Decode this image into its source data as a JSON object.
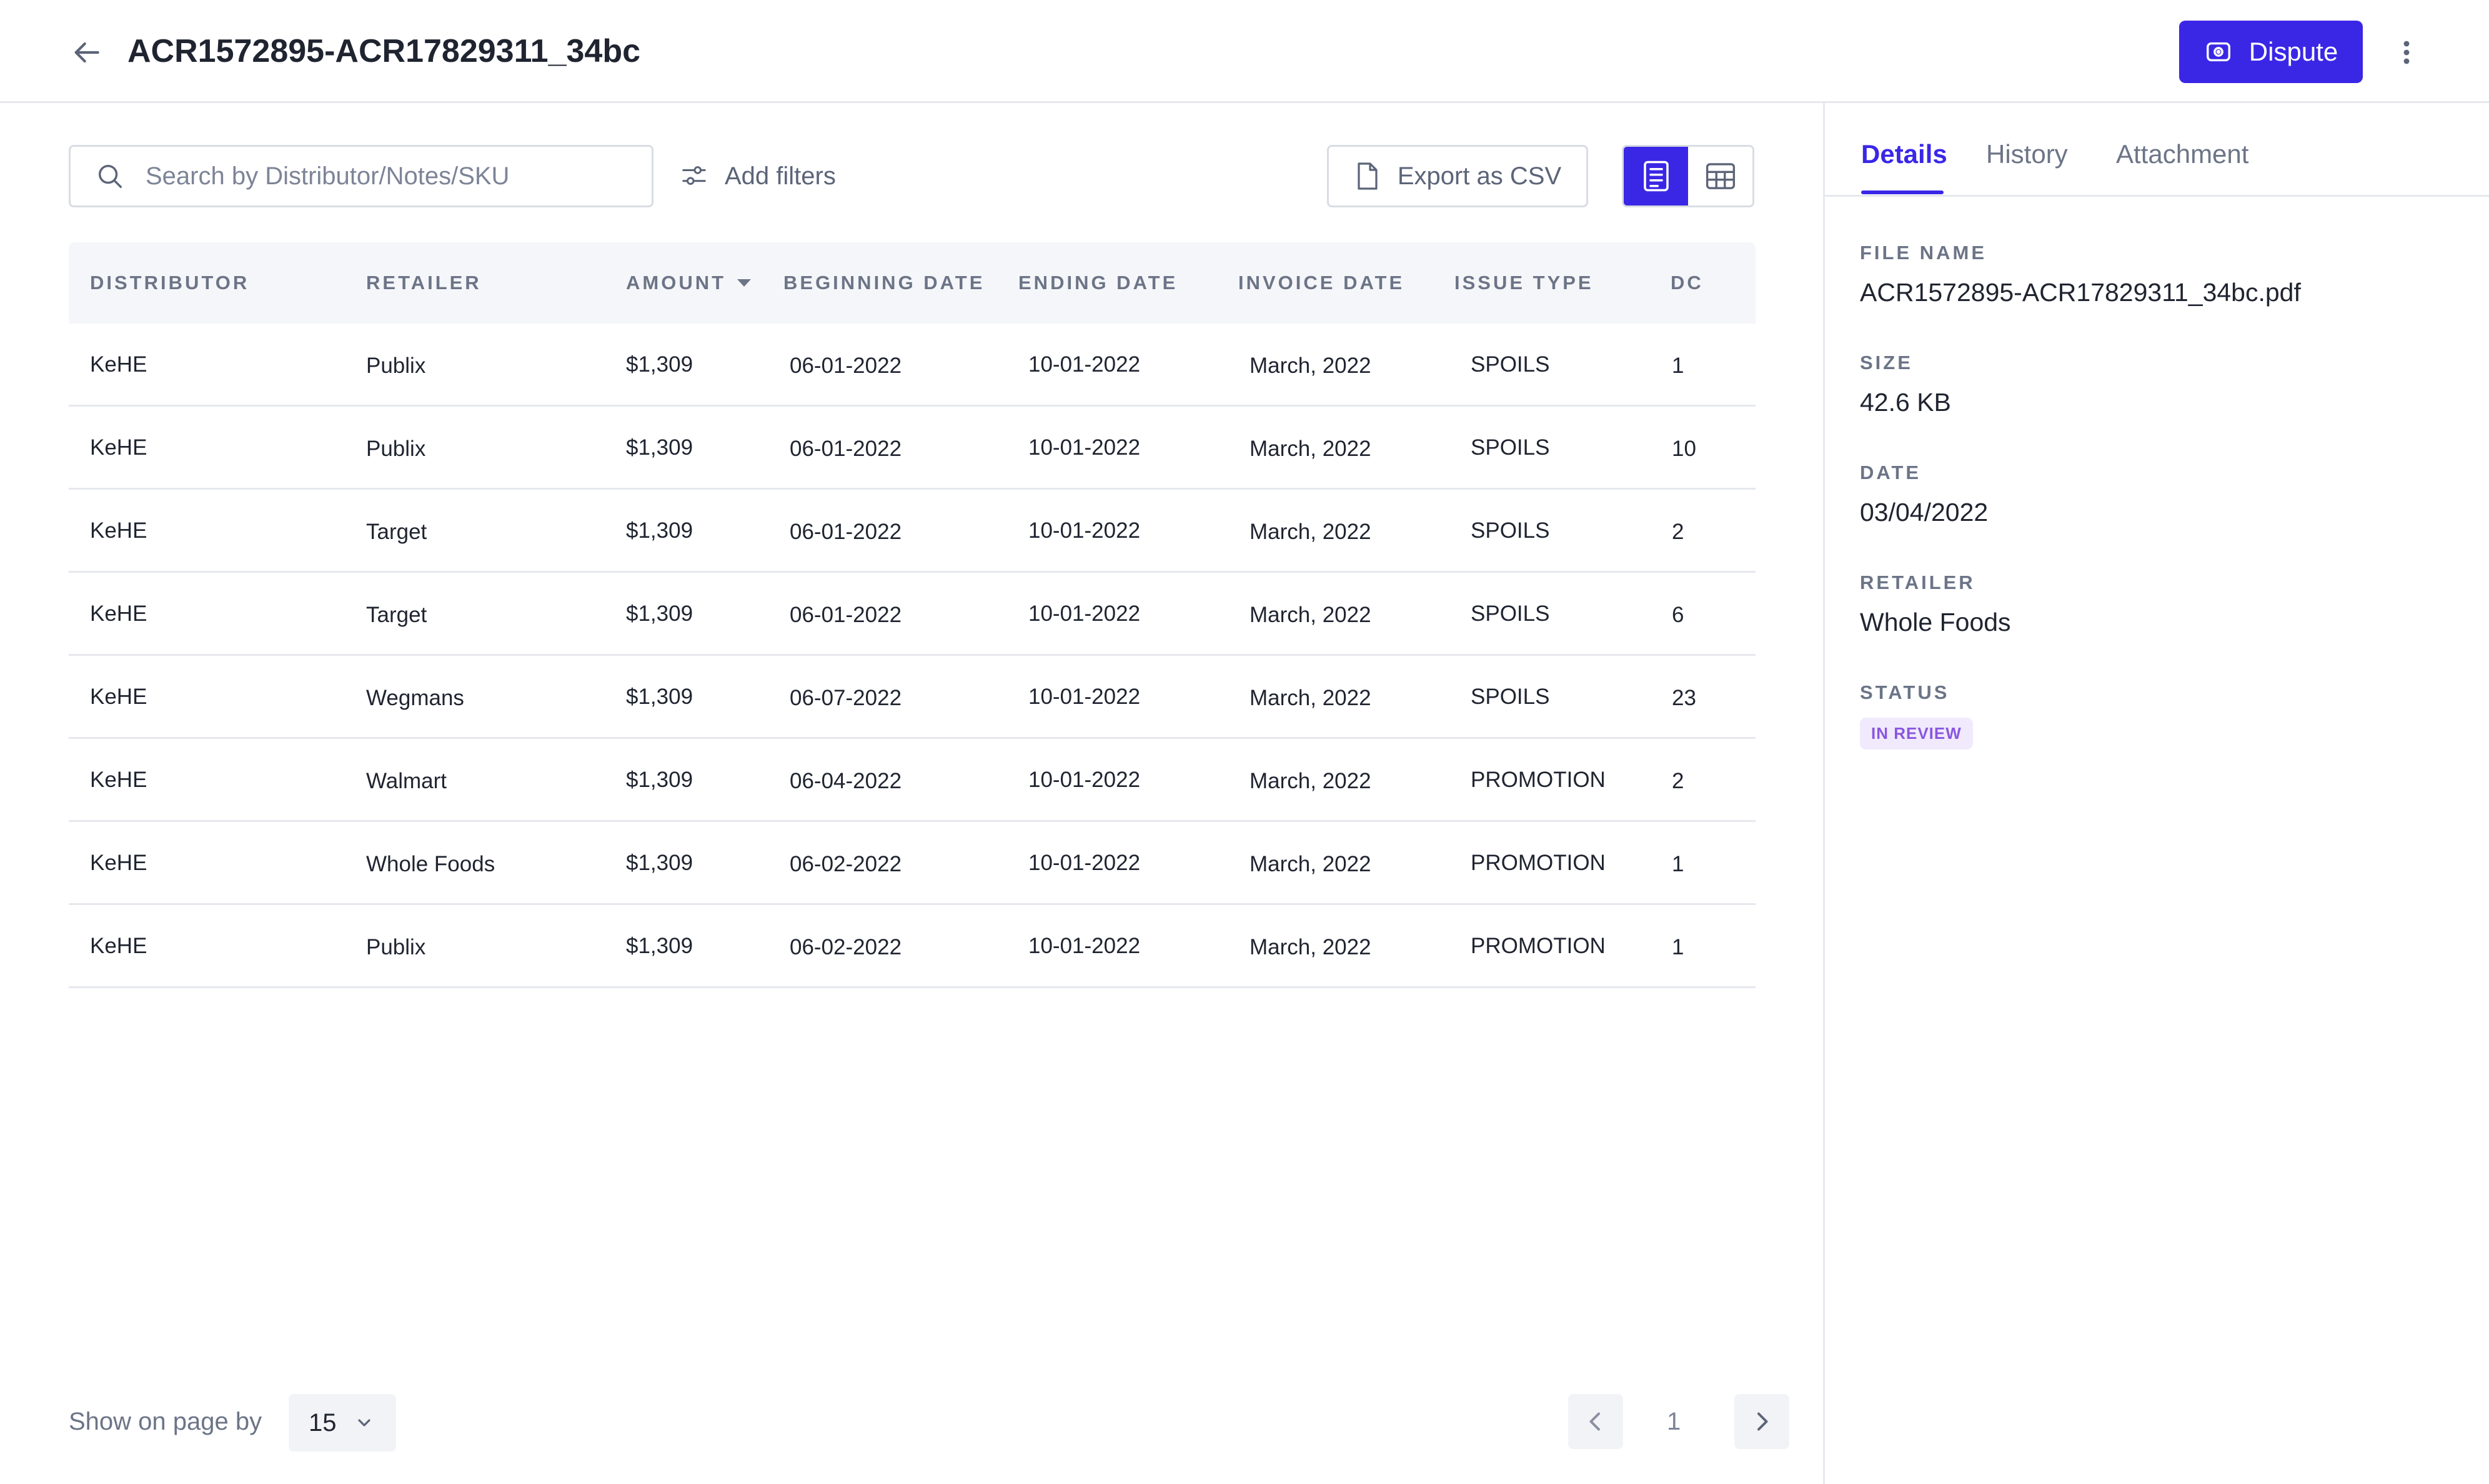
{
  "header": {
    "title": "ACR1572895-ACR17829311_34bc",
    "dispute_label": "Dispute"
  },
  "toolbar": {
    "search_placeholder": "Search by Distributor/Notes/SKU",
    "search_value": "",
    "filters_label": "Add filters",
    "export_label": "Export as CSV",
    "active_view": "document"
  },
  "table": {
    "columns": [
      "DISTRIBUTOR",
      "RETAILER",
      "AMOUNT",
      "BEGINNING DATE",
      "ENDING DATE",
      "INVOICE DATE",
      "ISSUE TYPE",
      "DC"
    ],
    "sorted_column": "AMOUNT",
    "rows": [
      [
        "KeHE",
        "Publix",
        "$1,309",
        "06-01-2022",
        "10-01-2022",
        "March, 2022",
        "SPOILS",
        "1"
      ],
      [
        "KeHE",
        "Publix",
        "$1,309",
        "06-01-2022",
        "10-01-2022",
        "March, 2022",
        "SPOILS",
        "10"
      ],
      [
        "KeHE",
        "Target",
        "$1,309",
        "06-01-2022",
        "10-01-2022",
        "March, 2022",
        "SPOILS",
        "2"
      ],
      [
        "KeHE",
        "Target",
        "$1,309",
        "06-01-2022",
        "10-01-2022",
        "March, 2022",
        "SPOILS",
        "6"
      ],
      [
        "KeHE",
        "Wegmans",
        "$1,309",
        "06-07-2022",
        "10-01-2022",
        "March, 2022",
        "SPOILS",
        "23"
      ],
      [
        "KeHE",
        "Walmart",
        "$1,309",
        "06-04-2022",
        "10-01-2022",
        "March, 2022",
        "PROMOTION",
        "2"
      ],
      [
        "KeHE",
        "Whole Foods",
        "$1,309",
        "06-02-2022",
        "10-01-2022",
        "March, 2022",
        "PROMOTION",
        "1"
      ],
      [
        "KeHE",
        "Publix",
        "$1,309",
        "06-02-2022",
        "10-01-2022",
        "March, 2022",
        "PROMOTION",
        "1"
      ]
    ]
  },
  "pagination": {
    "show_label": "Show on page by",
    "page_size": "15",
    "current_page": "1"
  },
  "panel": {
    "tabs": [
      {
        "label": "Details",
        "active": true
      },
      {
        "label": "History",
        "active": false
      },
      {
        "label": "Attachment",
        "active": false
      }
    ],
    "details": {
      "file_name_label": "FILE NAME",
      "file_name": "ACR1572895-ACR17829311_34bc.pdf",
      "size_label": "SIZE",
      "size": "42.6 KB",
      "date_label": "DATE",
      "date": "03/04/2022",
      "retailer_label": "RETAILER",
      "retailer": "Whole Foods",
      "status_label": "STATUS",
      "status": "IN REVIEW"
    }
  },
  "colors": {
    "accent": "#3a27e6",
    "badge_bg": "#f0eafc",
    "badge_text": "#8a56e0"
  },
  "icons": [
    "back-arrow-icon",
    "dispute-icon",
    "more-vertical-icon",
    "search-icon",
    "filter-sliders-icon",
    "file-icon",
    "document-view-icon",
    "table-view-icon",
    "sort-down-icon",
    "chevron-down-icon",
    "chevron-left-icon",
    "chevron-right-icon"
  ]
}
